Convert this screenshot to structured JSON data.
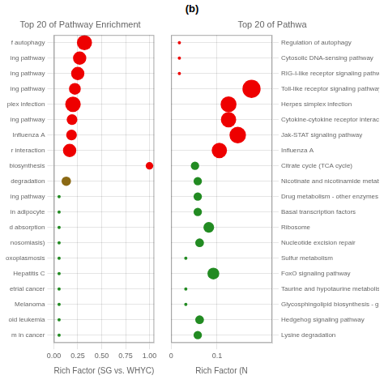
{
  "title": "(b)",
  "chart_data": [
    {
      "type": "scatter",
      "title": "Top 20 of Pathway Enrichment",
      "xlabel": "Rich Factor (SG vs. WHYC)",
      "categories": [
        "f autophagy",
        "ing pathway",
        "ing pathway",
        "ing pathway",
        "plex infection",
        "ing pathway",
        "Influenza A",
        "r interaction",
        "biosynthesis",
        "degradation",
        "ing pathway",
        "in adipocyte",
        "d absorption",
        "nosomiasis)",
        "oxoplasmosis",
        "Hepatitis C",
        "etrial cancer",
        "Melanoma",
        "oid leukemia",
        "m in cancer"
      ],
      "values": [
        0.32,
        0.27,
        0.25,
        0.22,
        0.2,
        0.19,
        0.185,
        0.165,
        1.0,
        0.13,
        0.055,
        0.055,
        0.055,
        0.055,
        0.055,
        0.055,
        0.055,
        0.055,
        0.055,
        0.055
      ],
      "sizes": [
        180,
        140,
        140,
        110,
        190,
        90,
        90,
        140,
        45,
        70,
        8,
        8,
        8,
        8,
        8,
        8,
        8,
        8,
        8,
        8
      ],
      "colors": [
        "#EE0000",
        "#EE0000",
        "#EE0000",
        "#EE0000",
        "#EE0000",
        "#EE0000",
        "#EE0000",
        "#EE0000",
        "#EE0000",
        "#8B6914",
        "#228B22",
        "#228B22",
        "#228B22",
        "#228B22",
        "#228B22",
        "#228B22",
        "#228B22",
        "#228B22",
        "#228B22",
        "#228B22"
      ],
      "xlim": [
        0.0,
        1.05
      ],
      "xticks": [
        {
          "value": 0.0,
          "label": "0.00"
        },
        {
          "value": 0.25,
          "label": "0.25"
        },
        {
          "value": 0.5,
          "label": "0.50"
        },
        {
          "value": 0.75,
          "label": "0.75"
        },
        {
          "value": 1.0,
          "label": "1.00"
        }
      ],
      "grid": true
    },
    {
      "type": "scatter",
      "title": "Top 20 of Pathwa",
      "xlabel": "Rich Factor (N",
      "categories": [
        "Regulation of autophagy",
        "Cytosolic DNA-sensing pathway",
        "RIG-I-like receptor signaling pathway",
        "Toll-like receptor signaling pathway",
        "Herpes simplex infection",
        "Cytokine-cytokine receptor interaction",
        "Jak-STAT signaling pathway",
        "Influenza A",
        "Citrate cycle (TCA cycle)",
        "Nicotinate and nicotinamide metabolism",
        "Drug metabolism - other enzymes",
        "Basal transcription factors",
        "Ribosome",
        "Nucleotide excision repair",
        "Sulfur metabolism",
        "FoxO signaling pathway",
        "Taurine and hypotaurine metabolism",
        "Glycosphingolipid biosynthesis - globo series",
        "Hedgehog signaling pathway",
        "Lysine degradation"
      ],
      "values": [
        0.018,
        0.018,
        0.018,
        0.175,
        0.125,
        0.125,
        0.145,
        0.105,
        0.052,
        0.058,
        0.058,
        0.058,
        0.082,
        0.062,
        0.032,
        0.092,
        0.032,
        0.032,
        0.062,
        0.058
      ],
      "sizes": [
        8,
        8,
        8,
        260,
        200,
        185,
        215,
        185,
        55,
        55,
        55,
        55,
        90,
        60,
        8,
        110,
        8,
        8,
        60,
        55
      ],
      "colors": [
        "#EE0000",
        "#EE0000",
        "#EE0000",
        "#EE0000",
        "#EE0000",
        "#EE0000",
        "#EE0000",
        "#EE0000",
        "#228B22",
        "#228B22",
        "#228B22",
        "#228B22",
        "#228B22",
        "#228B22",
        "#228B22",
        "#228B22",
        "#228B22",
        "#228B22",
        "#228B22",
        "#228B22"
      ],
      "xlim": [
        0.0,
        0.22
      ],
      "xticks": [
        0,
        0.1
      ],
      "grid": true
    }
  ]
}
